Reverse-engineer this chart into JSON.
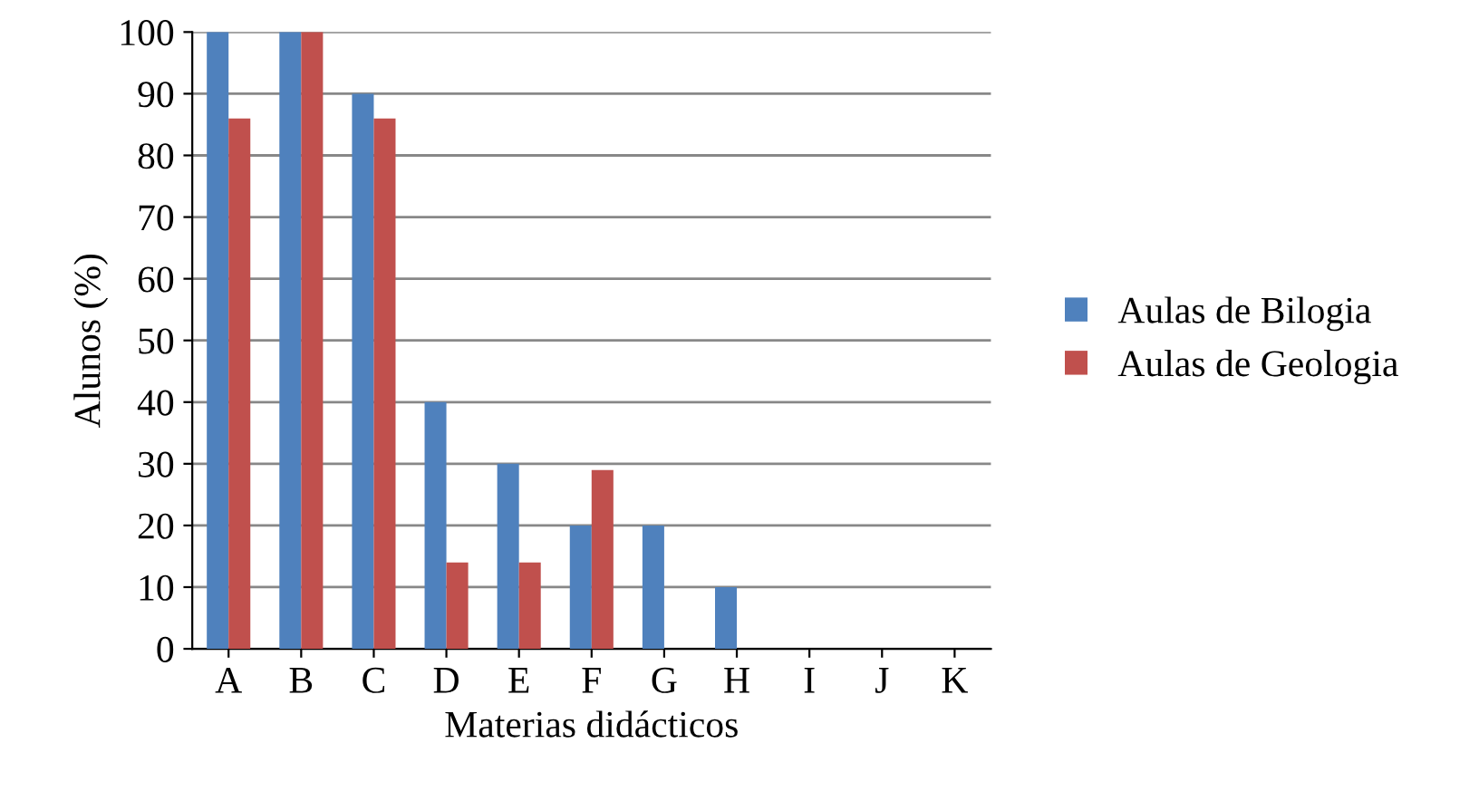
{
  "chart_data": {
    "type": "bar",
    "xlabel": "Materias didácticos",
    "ylabel": "Alunos (%)",
    "categories": [
      "A",
      "B",
      "C",
      "D",
      "E",
      "F",
      "G",
      "H",
      "I",
      "J",
      "K"
    ],
    "series": [
      {
        "name": "Aulas de Bilogia",
        "color": "#4f81bd",
        "values": [
          100,
          100,
          90,
          40,
          30,
          20,
          20,
          10,
          0,
          0,
          0
        ]
      },
      {
        "name": "Aulas de Geologia",
        "color": "#c0504d",
        "values": [
          86,
          100,
          86,
          14,
          14,
          29,
          0,
          0,
          0,
          0,
          0
        ]
      }
    ],
    "ylim": [
      0,
      100
    ],
    "yticks": [
      0,
      10,
      20,
      30,
      40,
      50,
      60,
      70,
      80,
      90,
      100
    ],
    "grid": "y",
    "legend": "right"
  }
}
